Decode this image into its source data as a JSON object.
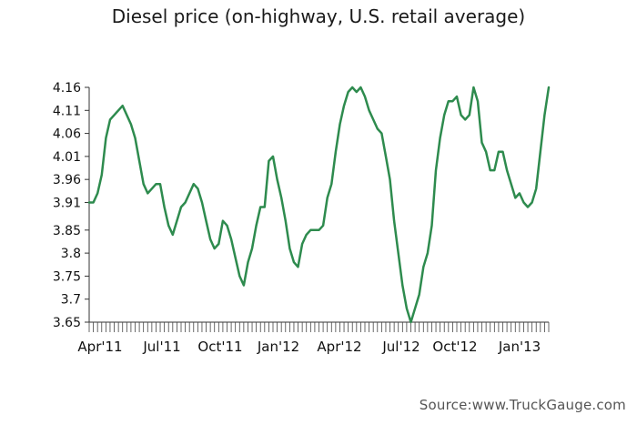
{
  "chart_data": {
    "type": "line",
    "title": "Diesel price (on-highway, U.S. retail average)",
    "xlabel": "",
    "ylabel": "",
    "ylim": [
      3.65,
      4.16
    ],
    "y_ticks": [
      "4.16",
      "4.11",
      "4.06",
      "4.01",
      "3.96",
      "3.91",
      "3.85",
      "3.8",
      "3.75",
      "3.7",
      "3.65"
    ],
    "x_ticks": [
      "Apr'11",
      "Jul'11",
      "Oct'11",
      "Jan'12",
      "Apr'12",
      "Jul'12",
      "Oct'12",
      "Jan'13"
    ],
    "grid": false,
    "line_color": "#2e8b4e",
    "series": [
      {
        "values": [
          3.91,
          3.91,
          3.93,
          3.97,
          4.05,
          4.09,
          4.1,
          4.11,
          4.12,
          4.1,
          4.08,
          4.05,
          4.0,
          3.95,
          3.93,
          3.94,
          3.95,
          3.95,
          3.9,
          3.86,
          3.84,
          3.87,
          3.9,
          3.91,
          3.93,
          3.95,
          3.94,
          3.91,
          3.87,
          3.83,
          3.81,
          3.82,
          3.87,
          3.86,
          3.83,
          3.79,
          3.75,
          3.73,
          3.78,
          3.81,
          3.86,
          3.9,
          3.9,
          4.0,
          4.01,
          3.96,
          3.92,
          3.87,
          3.81,
          3.78,
          3.77,
          3.82,
          3.84,
          3.85,
          3.85,
          3.85,
          3.86,
          3.92,
          3.95,
          4.02,
          4.08,
          4.12,
          4.15,
          4.16,
          4.15,
          4.16,
          4.14,
          4.11,
          4.09,
          4.07,
          4.06,
          4.01,
          3.96,
          3.87,
          3.8,
          3.73,
          3.68,
          3.65,
          3.68,
          3.71,
          3.77,
          3.8,
          3.86,
          3.98,
          4.05,
          4.1,
          4.13,
          4.13,
          4.14,
          4.1,
          4.09,
          4.1,
          4.16,
          4.13,
          4.04,
          4.02,
          3.98,
          3.98,
          4.02,
          4.02,
          3.98,
          3.95,
          3.92,
          3.93,
          3.91,
          3.9,
          3.91,
          3.94,
          4.02,
          4.1,
          4.16
        ]
      }
    ]
  },
  "source": "Source:www.TruckGauge.com"
}
